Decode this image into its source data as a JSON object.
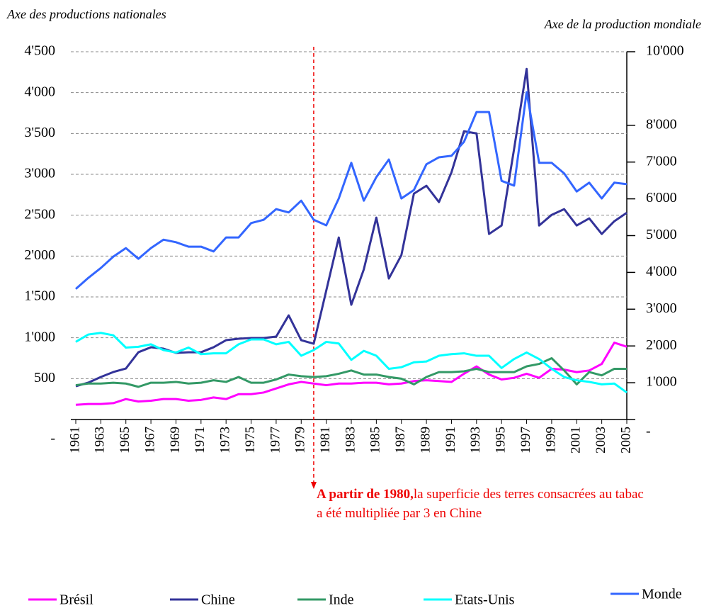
{
  "chart_data": {
    "type": "line",
    "y_axis_title": "Axe des productions nationales",
    "y2_axis_title": "Axe de la production mondiale",
    "x": [
      1961,
      1962,
      1963,
      1964,
      1965,
      1966,
      1967,
      1968,
      1969,
      1970,
      1971,
      1972,
      1973,
      1974,
      1975,
      1976,
      1977,
      1978,
      1979,
      1980,
      1981,
      1982,
      1983,
      1984,
      1985,
      1986,
      1987,
      1988,
      1989,
      1990,
      1991,
      1992,
      1993,
      1994,
      1995,
      1996,
      1997,
      1998,
      1999,
      2000,
      2001,
      2002,
      2003,
      2004,
      2005
    ],
    "xlim": [
      1961,
      2005
    ],
    "xticks": [
      1961,
      1963,
      1965,
      1967,
      1969,
      1971,
      1973,
      1975,
      1977,
      1979,
      1981,
      1983,
      1985,
      1987,
      1989,
      1991,
      1993,
      1995,
      1997,
      1999,
      2001,
      2003,
      2005
    ],
    "ylim": [
      0,
      4500
    ],
    "yticks": [
      {
        "value": 0,
        "label": "-"
      },
      500,
      {
        "value": 1000,
        "label": "1'000"
      },
      {
        "value": 1500,
        "label": "1'500"
      },
      {
        "value": 2000,
        "label": "2'000"
      },
      {
        "value": 2500,
        "label": "2'500"
      },
      {
        "value": 3000,
        "label": "3'000"
      },
      {
        "value": 3500,
        "label": "3'500"
      },
      {
        "value": 4000,
        "label": "4'000"
      },
      {
        "value": 4500,
        "label": "4'500"
      }
    ],
    "y2lim": [
      0,
      10000
    ],
    "y2ticks": [
      {
        "value": 0,
        "label": "-"
      },
      {
        "value": 1000,
        "label": "1'000"
      },
      {
        "value": 2000,
        "label": "2'000"
      },
      {
        "value": 3000,
        "label": "3'000"
      },
      {
        "value": 4000,
        "label": "4'000"
      },
      {
        "value": 5000,
        "label": "5'000"
      },
      {
        "value": 6000,
        "label": "6'000"
      },
      {
        "value": 7000,
        "label": "7'000"
      },
      {
        "value": 8000,
        "label": "8'000"
      },
      {
        "value": 10000,
        "label": "10'000"
      }
    ],
    "grid": true,
    "annotation_year": 1980,
    "annotation_bold": "A partir de 1980,",
    "annotation": "la superficie des terres consacrées au tabac a été multipliée par 3 en Chine",
    "series": [
      {
        "name": "Brésil",
        "color": "#ff00ff",
        "values": [
          180,
          190,
          190,
          200,
          250,
          220,
          230,
          250,
          250,
          230,
          240,
          270,
          250,
          310,
          310,
          330,
          380,
          430,
          460,
          440,
          420,
          440,
          440,
          450,
          450,
          430,
          440,
          470,
          480,
          470,
          460,
          560,
          650,
          550,
          490,
          510,
          560,
          510,
          620,
          610,
          580,
          600,
          680,
          940,
          890
        ]
      },
      {
        "name": "Chine",
        "color": "#333399",
        "values": [
          407,
          451,
          520,
          581,
          624,
          823,
          884,
          867,
          815,
          823,
          823,
          884,
          971,
          988,
          997,
          997,
          1014,
          1274,
          971,
          927,
          1577,
          2227,
          1404,
          1837,
          2470,
          1725,
          2011,
          2764,
          2860,
          2660,
          3024,
          3527,
          3501,
          2270,
          2374,
          3310,
          4290,
          2374,
          2504,
          2574,
          2374,
          2461,
          2270,
          2426,
          2530
        ]
      },
      {
        "name": "Inde",
        "color": "#339966",
        "values": [
          420,
          440,
          440,
          450,
          440,
          400,
          450,
          450,
          460,
          440,
          450,
          480,
          460,
          520,
          450,
          450,
          490,
          550,
          530,
          520,
          530,
          560,
          600,
          550,
          550,
          520,
          500,
          430,
          520,
          580,
          580,
          590,
          620,
          580,
          580,
          580,
          650,
          680,
          750,
          600,
          430,
          580,
          540,
          620,
          620
        ]
      },
      {
        "name": "Etats-Unis",
        "color": "#00ffff",
        "values": [
          950,
          1040,
          1060,
          1030,
          880,
          890,
          920,
          850,
          820,
          880,
          800,
          810,
          810,
          920,
          980,
          980,
          920,
          950,
          780,
          850,
          950,
          930,
          730,
          840,
          780,
          620,
          640,
          700,
          710,
          780,
          800,
          810,
          780,
          780,
          630,
          740,
          820,
          740,
          620,
          520,
          480,
          460,
          430,
          440,
          330
        ]
      },
      {
        "name": "Monde",
        "color": "#3366ff",
        "axis": "y2",
        "values": [
          3550,
          3850,
          4120,
          4430,
          4660,
          4370,
          4660,
          4890,
          4820,
          4700,
          4700,
          4570,
          4950,
          4950,
          5340,
          5430,
          5720,
          5630,
          5950,
          5430,
          5280,
          6010,
          6980,
          5950,
          6590,
          7070,
          6010,
          6240,
          6940,
          7130,
          7170,
          7550,
          8360,
          8360,
          6490,
          6360,
          8900,
          6980,
          6980,
          6690,
          6200,
          6440,
          6010,
          6440,
          6400
        ]
      }
    ]
  }
}
